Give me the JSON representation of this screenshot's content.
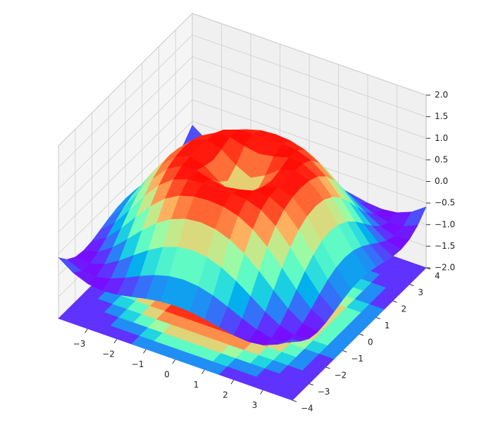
{
  "chart_data": {
    "type": "surface3d",
    "colormap": "rainbow",
    "contour_offset": -2,
    "x": [
      -4,
      -3.5,
      -3,
      -2.5,
      -2,
      -1.5,
      -1,
      -0.5,
      0,
      0.5,
      1,
      1.5,
      2,
      2.5,
      3,
      3.5,
      4
    ],
    "y": [
      -4,
      -3.5,
      -3,
      -2.5,
      -2,
      -1.5,
      -1,
      -0.5,
      0,
      0.5,
      1,
      1.5,
      2,
      2.5,
      3,
      3.5,
      4
    ],
    "z": [
      [
        -0.587,
        -0.824,
        -0.959,
        -1,
        -0.971,
        -0.904,
        -0.831,
        -0.777,
        -0.757,
        -0.777,
        -0.831,
        -0.904,
        -0.971,
        -1,
        -0.959,
        -0.824,
        -0.587
      ],
      [
        -0.824,
        -0.972,
        -0.995,
        -0.916,
        -0.777,
        -0.618,
        -0.478,
        -0.384,
        -0.351,
        -0.384,
        -0.478,
        -0.618,
        -0.777,
        -0.916,
        -0.995,
        -0.972,
        -0.824
      ],
      [
        -0.959,
        -0.995,
        -0.892,
        -0.691,
        -0.448,
        -0.211,
        -0.021,
        0.1,
        0.141,
        0.1,
        -0.021,
        -0.211,
        -0.448,
        -0.691,
        -0.892,
        -0.995,
        -0.959
      ],
      [
        -1,
        -0.916,
        -0.691,
        -0.384,
        -0.06,
        0.224,
        0.434,
        0.558,
        0.598,
        0.558,
        0.434,
        0.224,
        -0.06,
        -0.384,
        -0.691,
        -0.916,
        -1
      ],
      [
        -0.971,
        -0.777,
        -0.448,
        -0.06,
        0.308,
        0.598,
        0.787,
        0.882,
        0.909,
        0.882,
        0.787,
        0.598,
        0.308,
        -0.06,
        -0.448,
        -0.777,
        -0.971
      ],
      [
        -0.904,
        -0.618,
        -0.211,
        0.224,
        0.598,
        0.852,
        0.973,
        1,
        0.997,
        1,
        0.973,
        0.852,
        0.598,
        0.224,
        -0.211,
        -0.618,
        -0.904
      ],
      [
        -0.831,
        -0.478,
        -0.021,
        0.434,
        0.787,
        0.973,
        0.988,
        0.899,
        0.841,
        0.899,
        0.988,
        0.973,
        0.787,
        0.434,
        -0.021,
        -0.478,
        -0.831
      ],
      [
        -0.777,
        -0.384,
        0.1,
        0.558,
        0.882,
        1,
        0.899,
        0.65,
        0.479,
        0.65,
        0.899,
        1,
        0.882,
        0.558,
        0.1,
        -0.384,
        -0.777
      ],
      [
        -0.757,
        -0.351,
        0.141,
        0.598,
        0.909,
        0.997,
        0.841,
        0.479,
        0,
        0.479,
        0.841,
        0.997,
        0.909,
        0.598,
        0.141,
        -0.351,
        -0.757
      ],
      [
        -0.777,
        -0.384,
        0.1,
        0.558,
        0.882,
        1,
        0.899,
        0.65,
        0.479,
        0.65,
        0.899,
        1,
        0.882,
        0.558,
        0.1,
        -0.384,
        -0.777
      ],
      [
        -0.831,
        -0.478,
        -0.021,
        0.434,
        0.787,
        0.973,
        0.988,
        0.899,
        0.841,
        0.899,
        0.988,
        0.973,
        0.787,
        0.434,
        -0.021,
        -0.478,
        -0.831
      ],
      [
        -0.904,
        -0.618,
        -0.211,
        0.224,
        0.598,
        0.852,
        0.973,
        1,
        0.997,
        1,
        0.973,
        0.852,
        0.598,
        0.224,
        -0.211,
        -0.618,
        -0.904
      ],
      [
        -0.971,
        -0.777,
        -0.448,
        -0.06,
        0.308,
        0.598,
        0.787,
        0.882,
        0.909,
        0.882,
        0.787,
        0.598,
        0.308,
        -0.06,
        -0.448,
        -0.777,
        -0.971
      ],
      [
        -1,
        -0.916,
        -0.691,
        -0.384,
        -0.06,
        0.224,
        0.434,
        0.558,
        0.598,
        0.558,
        0.434,
        0.224,
        -0.06,
        -0.384,
        -0.691,
        -0.916,
        -1
      ],
      [
        -0.959,
        -0.995,
        -0.892,
        -0.691,
        -0.448,
        -0.211,
        -0.021,
        0.1,
        0.141,
        0.1,
        -0.021,
        -0.211,
        -0.448,
        -0.691,
        -0.892,
        -0.995,
        -0.959
      ],
      [
        -0.824,
        -0.972,
        -0.995,
        -0.916,
        -0.777,
        -0.618,
        -0.478,
        -0.384,
        -0.351,
        -0.384,
        -0.478,
        -0.618,
        -0.777,
        -0.916,
        -0.995,
        -0.972,
        -0.824
      ],
      [
        -0.587,
        -0.824,
        -0.959,
        -1,
        -0.971,
        -0.904,
        -0.831,
        -0.777,
        -0.757,
        -0.777,
        -0.831,
        -0.904,
        -0.971,
        -1,
        -0.959,
        -0.824,
        -0.587
      ]
    ],
    "xlim": [
      -4,
      4
    ],
    "ylim": [
      -4,
      4
    ],
    "zlim": [
      -2,
      2
    ],
    "xticks": [
      {
        "value": -3,
        "label": "−3"
      },
      {
        "value": -2,
        "label": "−2"
      },
      {
        "value": -1,
        "label": "−1"
      },
      0,
      1,
      2,
      3
    ],
    "yticks": [
      {
        "value": -4,
        "label": "−4"
      },
      {
        "value": -3,
        "label": "−3"
      },
      {
        "value": -2,
        "label": "−2"
      },
      {
        "value": -1,
        "label": "−1"
      },
      0,
      1,
      2,
      3,
      4
    ],
    "zticks": [
      {
        "value": -2,
        "label": "−2.0"
      },
      {
        "value": -1.5,
        "label": "−1.5"
      },
      {
        "value": -1,
        "label": "−1.0"
      },
      {
        "value": -0.5,
        "label": "−0.5"
      },
      {
        "value": 0,
        "label": "0.0"
      },
      {
        "value": 0.5,
        "label": "0.5"
      },
      {
        "value": 1,
        "label": "1.0"
      },
      {
        "value": 1.5,
        "label": "1.5"
      },
      {
        "value": 2,
        "label": "2.0"
      }
    ]
  }
}
